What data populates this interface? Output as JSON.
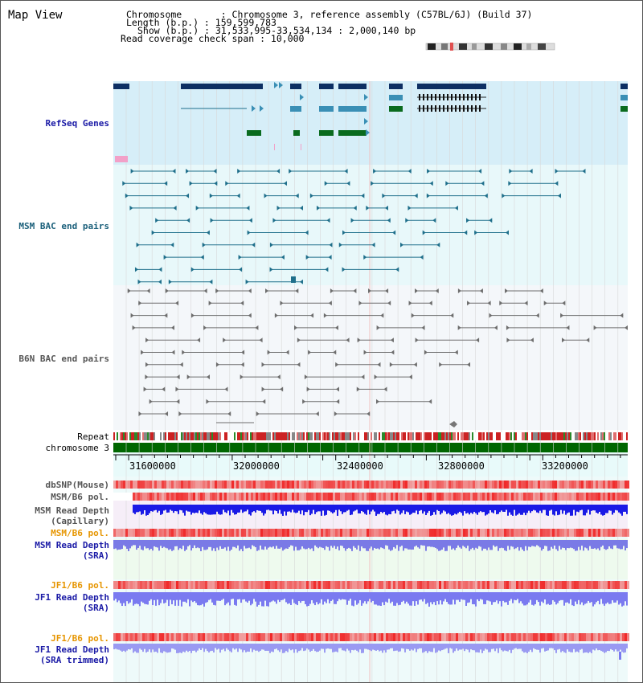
{
  "title": "Map View",
  "header": {
    "chromosome_line": "Chromosome       : Chromosome 3, reference assembly (C57BL/6J) (Build 37)",
    "length_line": "Length (b.p.) : 159,599,783",
    "show_line": "Show (b.p.) : 31,533,995-33,534,134 : 2,000,140 bp",
    "coverage_line": "Read coverage check span : 10,000"
  },
  "tracks": {
    "refseq": "RefSeq Genes",
    "msm_bac": "MSM BAC end pairs",
    "b6n_bac": "B6N BAC end pairs",
    "repeat": "Repeat",
    "chromosome": "chromosome 3",
    "dbsnp": "dbSNP(Mouse)",
    "msm_b6_pol_1": "MSM/B6 pol.",
    "msm_depth_cap": "MSM Read Depth\n(Capillary)",
    "msm_b6_pol_2": "MSM/B6 pol.",
    "msm_depth_sra": "MSM Read Depth\n(SRA)",
    "jf1_b6_pol_1": "JF1/B6 pol.",
    "jf1_depth_sra": "JF1 Read Depth\n(SRA)",
    "jf1_b6_pol_2": "JF1/B6 pol.",
    "jf1_depth_trim": "JF1 Read Depth\n(SRA trimmed)"
  },
  "axis": {
    "ticks": [
      "31600000",
      "32000000",
      "32400000",
      "32800000",
      "33200000"
    ]
  },
  "colors": {
    "refseq_bg": "#d6eef8",
    "msm_bac_bg": "#e8f8fa",
    "b6n_bg": "#f2f6fa",
    "chromosome_green": "#006600",
    "navy": "#0d2f63",
    "teal": "#3a8fb5",
    "green": "#0a6b1e",
    "bac_teal": "#1f6f8b",
    "bac_gray": "#6e6e6e",
    "label_blue": "#1a1aa6",
    "label_teal": "#1a5f7a",
    "label_orange": "#e69500"
  }
}
